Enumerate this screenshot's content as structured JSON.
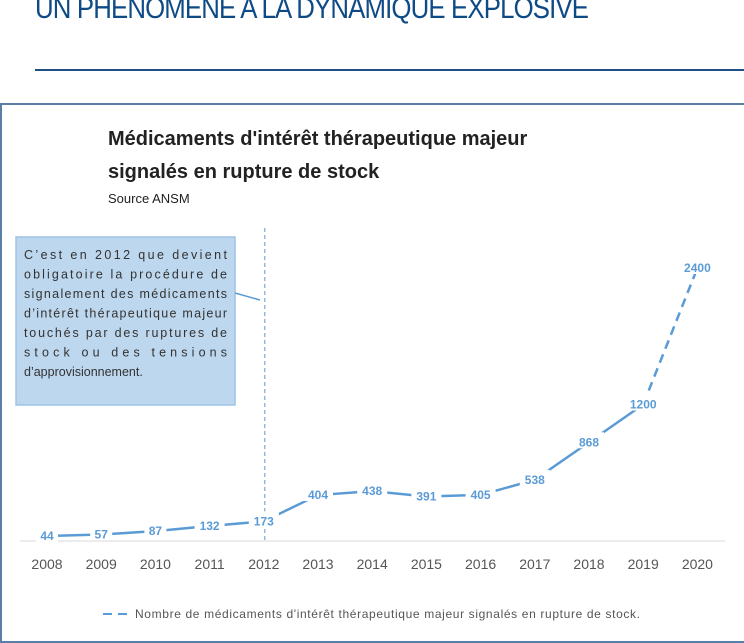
{
  "page": {
    "headline": "UN PHENOMENE A LA DYNAMIQUE EXPLOSIVE"
  },
  "chart_data": {
    "type": "line",
    "title_line1": "Médicaments d'intérêt thérapeutique majeur",
    "title_line2": "signalés en rupture de stock",
    "subtitle": "Source ANSM",
    "categories": [
      "2008",
      "2009",
      "2010",
      "2011",
      "2012",
      "2013",
      "2014",
      "2015",
      "2016",
      "2017",
      "2018",
      "2019",
      "2020"
    ],
    "series": [
      {
        "name": "Nombre de médicaments d'intérêt thérapeutique majeur signalés en rupture de stock.",
        "values": [
          44,
          57,
          87,
          132,
          173,
          404,
          438,
          391,
          405,
          538,
          868,
          1200,
          2400
        ]
      }
    ],
    "ylim": [
      0,
      2400
    ],
    "legend_position": "bottom",
    "annotation": {
      "year": "2012",
      "lines": [
        "C’est en 2012 que devient",
        "obligatoire la procédure de",
        "signalement des médicaments",
        "d’intérêt thérapeutique majeur",
        "touchés par des ruptures de",
        "stock ou des tensions",
        "d’approvisionnement."
      ]
    },
    "color": "#5b9bd5"
  }
}
